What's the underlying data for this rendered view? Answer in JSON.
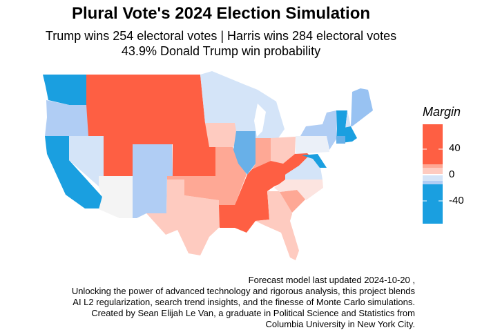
{
  "title": "Plural Vote's 2024 Election Simulation",
  "subtitle_line1": "Trump wins 254 electoral votes | Harris wins 284 electoral votes",
  "subtitle_line2": "43.9% Donald Trump win probability",
  "legend": {
    "title": "Margin",
    "labels": [
      "40",
      "0",
      "-40"
    ],
    "colors": [
      "#fe5f43",
      "#fea895",
      "#fecbc0",
      "#d4e4f8",
      "#b0cdf4",
      "#1a9fe0"
    ]
  },
  "states": {
    "washington": "#1a9fe0",
    "oregon": "#b0cdf4",
    "california": "#1a9fe0",
    "nevada": "#d4e4f8",
    "mountain-plains": "#fe5f43",
    "arizona": "#f4f4f4",
    "colorado-new-mexico": "#b0cdf4",
    "texas": "#fecbc0",
    "kansas-oklahoma-missouri-arkansas": "#fea895",
    "iowa": "#fecbc0",
    "upper-midwest": "#d4e4f8",
    "illinois": "#68b0e8",
    "indiana": "#fea895",
    "ohio": "#fecbc0",
    "south-central": "#fe5f43",
    "georgia-florida": "#fecbc0",
    "south-carolina": "#fea895",
    "north-carolina": "#fce4e0",
    "virginia": "#d4e4f8",
    "maryland-delaware-new-jersey": "#1a9fe0",
    "pennsylvania": "#ebf0f8",
    "new-york": "#b0cdf4",
    "vermont": "#1a9fe0",
    "new-hampshire": "#d4e4f8",
    "maine": "#98c2f2",
    "massachusetts-rhode-island": "#1a9fe0",
    "connecticut": "#68b0e8"
  },
  "caption": [
    "Forecast model last updated 2024-10-20 ,",
    "Unlocking the power of advanced technology and rigorous analysis, this project blends",
    "AI L2 regularization, search trend insights, and the finesse of Monte Carlo simulations.",
    "Created by Sean Elijah Le Van, a graduate in Political Science and Statistics from",
    "Columbia University in New York City."
  ]
}
